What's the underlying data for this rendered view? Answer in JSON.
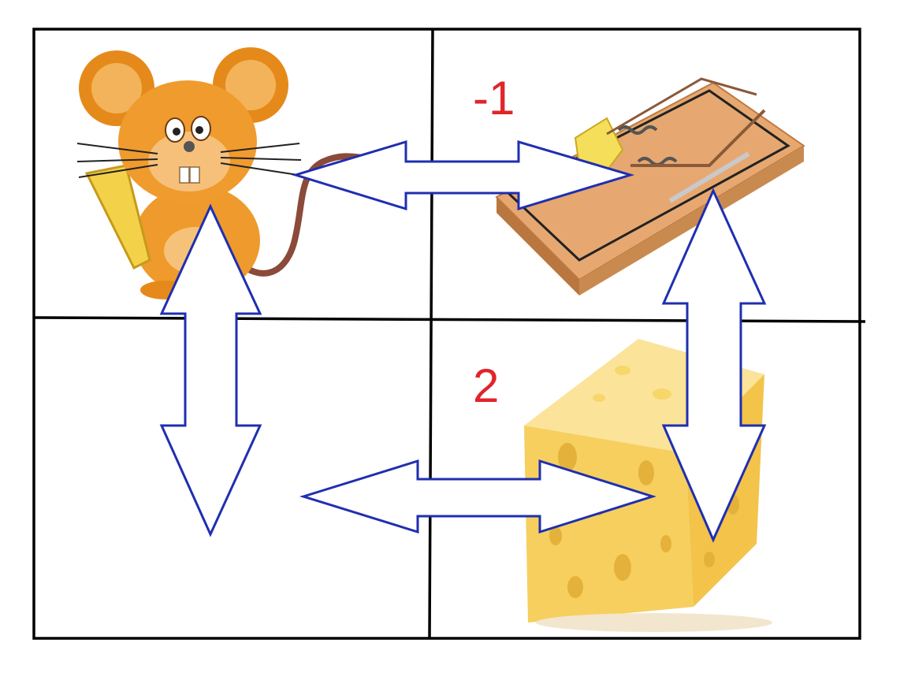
{
  "grid": {
    "rows": 2,
    "cols": 2,
    "cells": [
      {
        "row": 1,
        "col": 1,
        "contents": "mouse",
        "reward": ""
      },
      {
        "row": 1,
        "col": 2,
        "contents": "mousetrap",
        "reward": "-1"
      },
      {
        "row": 2,
        "col": 1,
        "contents": "empty",
        "reward": ""
      },
      {
        "row": 2,
        "col": 2,
        "contents": "cheese",
        "reward": "2"
      }
    ]
  },
  "labels": {
    "trap_reward": "-1",
    "cheese_reward": "2"
  },
  "colors": {
    "arrow_stroke": "#1f2fb0",
    "reward_text": "#e0252b",
    "grid_lines": "#000000"
  },
  "arrows": [
    {
      "from": "mouse",
      "to": "mousetrap",
      "direction": "bidirectional-horizontal"
    },
    {
      "from": "mouse",
      "to": "empty",
      "direction": "bidirectional-vertical"
    },
    {
      "from": "empty",
      "to": "cheese",
      "direction": "bidirectional-horizontal"
    },
    {
      "from": "mousetrap",
      "to": "cheese",
      "direction": "bidirectional-vertical"
    }
  ]
}
